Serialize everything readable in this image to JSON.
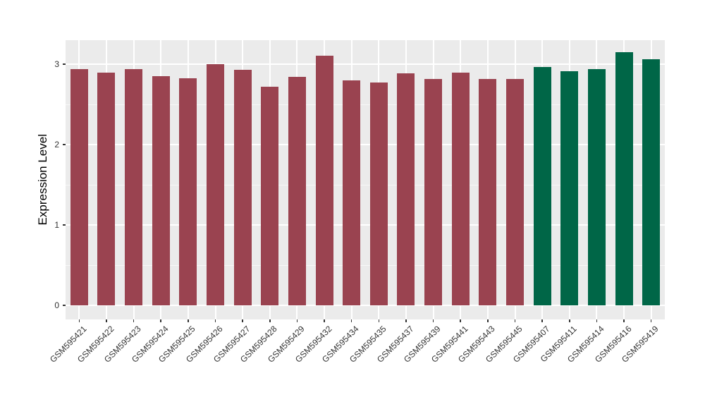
{
  "figure": {
    "background_color": "#FFFFFF",
    "panel_background_color": "#EBEBEB",
    "grid_major_color": "#FFFFFF",
    "grid_minor_color": "#F7F7F7",
    "axis_text_color": "#333333",
    "axis_title_color": "#000000"
  },
  "chart_data": {
    "type": "bar",
    "title": "",
    "xlabel": "",
    "ylabel": "Expression Level",
    "ylim": [
      -0.175,
      3.3
    ],
    "yticks": [
      0,
      1,
      2,
      3
    ],
    "grid": "major and minor horizontal, major vertical per category",
    "legend_position": "none",
    "categories": [
      "GSM595421",
      "GSM595422",
      "GSM595423",
      "GSM595424",
      "GSM595425",
      "GSM595426",
      "GSM595427",
      "GSM595428",
      "GSM595429",
      "GSM595432",
      "GSM595434",
      "GSM595435",
      "GSM595437",
      "GSM595439",
      "GSM595441",
      "GSM595443",
      "GSM595445",
      "GSM595407",
      "GSM595411",
      "GSM595414",
      "GSM595416",
      "GSM595419"
    ],
    "values": [
      2.94,
      2.9,
      2.94,
      2.85,
      2.83,
      3.0,
      2.93,
      2.72,
      2.84,
      3.11,
      2.8,
      2.77,
      2.89,
      2.82,
      2.9,
      2.82,
      2.82,
      2.97,
      2.91,
      2.94,
      3.15,
      3.06
    ],
    "bar_groups": [
      {
        "color": "#9A4350",
        "count": 17
      },
      {
        "color": "#006647",
        "count": 5
      }
    ]
  }
}
